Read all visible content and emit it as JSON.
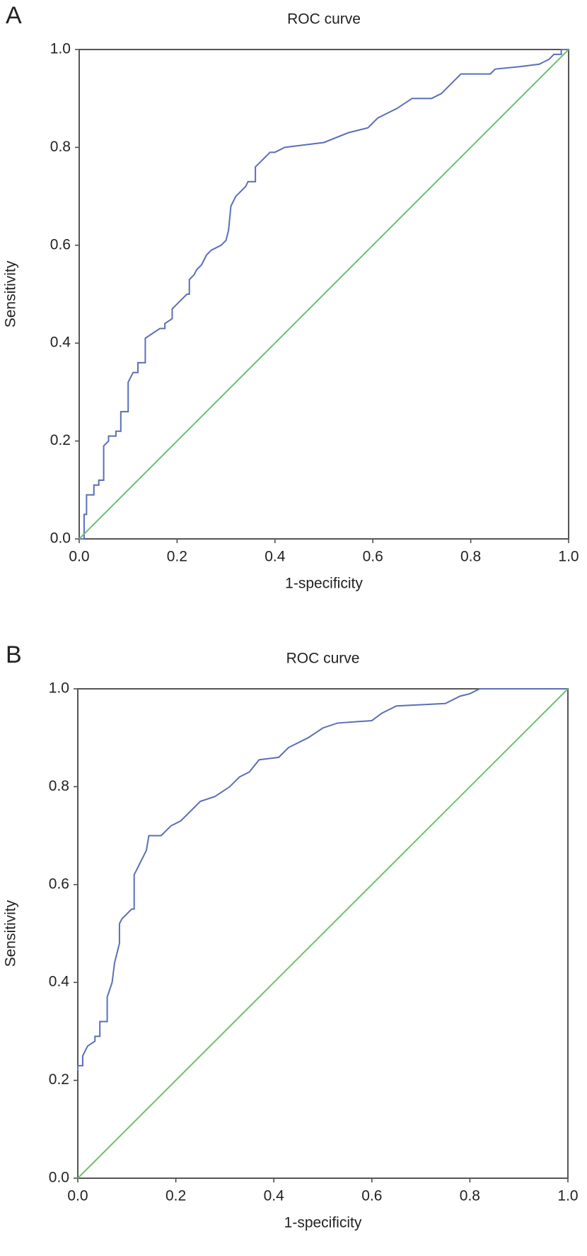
{
  "chart_data": [
    {
      "type": "line",
      "panel": "A",
      "title": "ROC curve",
      "xlabel": "1-specificity",
      "ylabel": "Sensitivity",
      "xlim": [
        0,
        1
      ],
      "ylim": [
        0,
        1
      ],
      "xticks": [
        {
          "value": 0,
          "label": "0.0"
        },
        0.2,
        0.4,
        0.6,
        0.8,
        {
          "value": 1,
          "label": "1.0"
        }
      ],
      "yticks": [
        {
          "value": 0,
          "label": "0.0"
        },
        0.2,
        0.4,
        0.6,
        0.8,
        {
          "value": 1,
          "label": "1.0"
        }
      ],
      "series": [
        {
          "color": "#5a6fb8",
          "x": [
            0,
            0.01,
            0.01,
            0.015,
            0.015,
            0.03,
            0.03,
            0.04,
            0.04,
            0.05,
            0.05,
            0.06,
            0.06,
            0.075,
            0.075,
            0.085,
            0.085,
            0.1,
            0.1,
            0.11,
            0.12,
            0.12,
            0.135,
            0.135,
            0.15,
            0.165,
            0.175,
            0.175,
            0.19,
            0.19,
            0.2,
            0.21,
            0.22,
            0.225,
            0.225,
            0.235,
            0.24,
            0.25,
            0.26,
            0.27,
            0.29,
            0.3,
            0.305,
            0.31,
            0.32,
            0.33,
            0.34,
            0.345,
            0.36,
            0.36,
            0.37,
            0.38,
            0.39,
            0.4,
            0.42,
            0.5,
            0.55,
            0.59,
            0.61,
            0.63,
            0.65,
            0.68,
            0.72,
            0.74,
            0.76,
            0.78,
            0.84,
            0.85,
            0.9,
            0.94,
            0.96,
            0.97,
            0.985,
            0.985,
            1
          ],
          "values": [
            0,
            0,
            0.05,
            0.05,
            0.09,
            0.09,
            0.11,
            0.11,
            0.12,
            0.12,
            0.19,
            0.2,
            0.21,
            0.21,
            0.22,
            0.22,
            0.26,
            0.26,
            0.32,
            0.34,
            0.34,
            0.36,
            0.36,
            0.41,
            0.42,
            0.43,
            0.43,
            0.44,
            0.45,
            0.47,
            0.48,
            0.49,
            0.5,
            0.5,
            0.53,
            0.54,
            0.55,
            0.56,
            0.58,
            0.59,
            0.6,
            0.61,
            0.63,
            0.68,
            0.7,
            0.71,
            0.72,
            0.73,
            0.73,
            0.76,
            0.77,
            0.78,
            0.79,
            0.79,
            0.8,
            0.81,
            0.83,
            0.84,
            0.86,
            0.87,
            0.88,
            0.9,
            0.9,
            0.91,
            0.93,
            0.95,
            0.95,
            0.96,
            0.965,
            0.97,
            0.98,
            0.99,
            0.99,
            1,
            1
          ]
        },
        {
          "color": "#6cc070",
          "x": [
            0,
            1
          ],
          "values": [
            0,
            1
          ]
        }
      ]
    },
    {
      "type": "line",
      "panel": "B",
      "title": "ROC curve",
      "xlabel": "1-specificity",
      "ylabel": "Sensitivity",
      "xlim": [
        0,
        1
      ],
      "ylim": [
        0,
        1
      ],
      "xticks": [
        {
          "value": 0,
          "label": "0.0"
        },
        0.2,
        0.4,
        0.6,
        0.8,
        {
          "value": 1,
          "label": "1.0"
        }
      ],
      "yticks": [
        {
          "value": 0,
          "label": "0.0"
        },
        0.2,
        0.4,
        0.6,
        0.8,
        {
          "value": 1,
          "label": "1.0"
        }
      ],
      "series": [
        {
          "color": "#5a6fb8",
          "x": [
            0,
            0,
            0.01,
            0.01,
            0.02,
            0.035,
            0.035,
            0.045,
            0.045,
            0.06,
            0.06,
            0.07,
            0.075,
            0.085,
            0.085,
            0.09,
            0.1,
            0.11,
            0.115,
            0.115,
            0.125,
            0.13,
            0.14,
            0.145,
            0.17,
            0.19,
            0.21,
            0.23,
            0.25,
            0.28,
            0.31,
            0.33,
            0.35,
            0.37,
            0.41,
            0.43,
            0.47,
            0.5,
            0.53,
            0.6,
            0.62,
            0.65,
            0.75,
            0.78,
            0.8,
            0.82,
            1
          ],
          "values": [
            0.22,
            0.23,
            0.23,
            0.25,
            0.27,
            0.28,
            0.29,
            0.29,
            0.32,
            0.32,
            0.37,
            0.4,
            0.44,
            0.48,
            0.52,
            0.53,
            0.54,
            0.55,
            0.55,
            0.62,
            0.64,
            0.65,
            0.67,
            0.7,
            0.7,
            0.72,
            0.73,
            0.75,
            0.77,
            0.78,
            0.8,
            0.82,
            0.83,
            0.855,
            0.86,
            0.88,
            0.9,
            0.92,
            0.93,
            0.935,
            0.95,
            0.965,
            0.97,
            0.985,
            0.99,
            1,
            1
          ]
        },
        {
          "color": "#6cc070",
          "x": [
            0,
            1
          ],
          "values": [
            0,
            1
          ]
        }
      ]
    }
  ]
}
